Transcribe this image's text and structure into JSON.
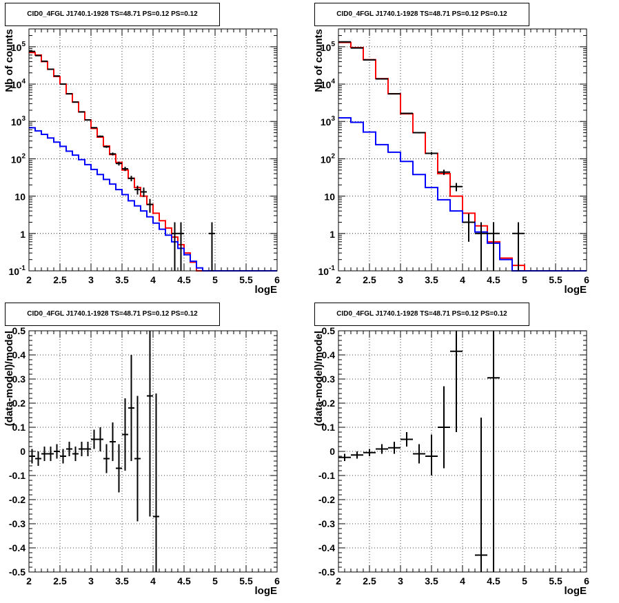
{
  "chart_data": [
    {
      "type": "line",
      "title": "CID0_4FGL J1740.1-1928 TS=48.71 PS=0.12 PS=0.12",
      "xlabel": "logE",
      "ylabel": "Nb of counts",
      "yscale": "log",
      "xlim": [
        2,
        6
      ],
      "ylim": [
        0.1,
        300000
      ],
      "grid": true,
      "xticks": [
        "2",
        "2.5",
        "3",
        "3.5",
        "4",
        "4.5",
        "5",
        "5.5",
        "6"
      ],
      "yticks": [
        {
          "value": 0.1,
          "base": "10",
          "exp": "-1"
        },
        {
          "value": 1,
          "label": "1"
        },
        {
          "value": 10,
          "label": "10"
        },
        {
          "value": 100,
          "base": "10",
          "exp": "2"
        },
        {
          "value": 1000,
          "base": "10",
          "exp": "3"
        },
        {
          "value": 10000,
          "base": "10",
          "exp": "4"
        },
        {
          "value": 100000,
          "base": "10",
          "exp": "5"
        }
      ],
      "bin_edges": [
        2,
        2.1,
        2.2,
        2.3,
        2.4,
        2.5,
        2.6,
        2.7,
        2.8,
        2.9,
        3,
        3.1,
        3.2,
        3.3,
        3.4,
        3.5,
        3.6,
        3.7,
        3.8,
        3.9,
        4,
        4.1,
        4.2,
        4.3,
        4.4,
        4.5,
        4.6,
        4.7,
        4.8,
        4.9,
        5,
        5.1,
        5.2,
        5.3,
        5.4,
        5.5,
        5.6,
        5.7,
        5.8,
        5.9,
        6
      ],
      "series": [
        {
          "color": "#ff0000",
          "values": [
            70000,
            60000,
            40000,
            25000,
            16000,
            10000,
            5500,
            3300,
            1800,
            1100,
            650,
            380,
            220,
            130,
            80,
            50,
            30,
            17,
            10,
            6,
            3.5,
            2.2,
            1.4,
            0.8,
            0.5,
            0.3,
            0.17,
            0.1,
            0.1,
            0.1,
            0.1,
            0.1,
            0.1,
            0.1,
            0.1,
            0.1,
            0.1,
            0.1,
            0.1,
            0.1
          ]
        },
        {
          "color": "#0000ff",
          "values": [
            680,
            560,
            450,
            360,
            280,
            215,
            160,
            125,
            95,
            70,
            52,
            38,
            28,
            21,
            15,
            11,
            7.5,
            5.5,
            4,
            2.8,
            1.9,
            1.3,
            0.9,
            0.6,
            0.4,
            0.27,
            0.18,
            0.12,
            0.1,
            0.1,
            0.1,
            0.1,
            0.1,
            0.1,
            0.1,
            0.1,
            0.1,
            0.1,
            0.1,
            0.1
          ]
        }
      ],
      "data_points": [
        {
          "x": 2.05,
          "y": 75000,
          "ylo": 74700,
          "yhi": 75300
        },
        {
          "x": 2.15,
          "y": 58000,
          "ylo": 57700,
          "yhi": 58300
        },
        {
          "x": 2.25,
          "y": 41000,
          "ylo": 40800,
          "yhi": 41200
        },
        {
          "x": 2.35,
          "y": 25000,
          "ylo": 24840,
          "yhi": 25160
        },
        {
          "x": 2.45,
          "y": 16500,
          "ylo": 16370,
          "yhi": 16630
        },
        {
          "x": 2.55,
          "y": 10000,
          "ylo": 9900,
          "yhi": 10100
        },
        {
          "x": 2.65,
          "y": 5500,
          "ylo": 5430,
          "yhi": 5570
        },
        {
          "x": 2.75,
          "y": 3300,
          "ylo": 3240,
          "yhi": 3360
        },
        {
          "x": 2.85,
          "y": 1800,
          "ylo": 1760,
          "yhi": 1840
        },
        {
          "x": 2.95,
          "y": 1100,
          "ylo": 1070,
          "yhi": 1130
        },
        {
          "x": 3.05,
          "y": 680,
          "ylo": 654,
          "yhi": 706
        },
        {
          "x": 3.15,
          "y": 400,
          "ylo": 380,
          "yhi": 420
        },
        {
          "x": 3.25,
          "y": 210,
          "ylo": 196,
          "yhi": 224
        },
        {
          "x": 3.35,
          "y": 135,
          "ylo": 123,
          "yhi": 147
        },
        {
          "x": 3.45,
          "y": 75,
          "ylo": 66,
          "yhi": 84
        },
        {
          "x": 3.55,
          "y": 54,
          "ylo": 47,
          "yhi": 61
        },
        {
          "x": 3.65,
          "y": 30,
          "ylo": 25,
          "yhi": 35
        },
        {
          "x": 3.75,
          "y": 15,
          "ylo": 11,
          "yhi": 19
        },
        {
          "x": 3.85,
          "y": 13,
          "ylo": 9.5,
          "yhi": 17
        },
        {
          "x": 3.95,
          "y": 6,
          "ylo": 3.6,
          "yhi": 8.4
        },
        {
          "x": 4.35,
          "y": 1,
          "ylo": 0.1,
          "yhi": 2
        },
        {
          "x": 4.45,
          "y": 1,
          "ylo": 0.1,
          "yhi": 2
        },
        {
          "x": 4.95,
          "y": 1,
          "ylo": 0.1,
          "yhi": 2
        }
      ]
    },
    {
      "type": "line",
      "title": "CID0_4FGL J1740.1-1928 TS=48.71 PS=0.12 PS=0.12",
      "xlabel": "logE",
      "ylabel": "Nb of counts",
      "yscale": "log",
      "xlim": [
        2,
        6
      ],
      "ylim": [
        0.1,
        300000
      ],
      "grid": true,
      "xticks": [
        "2",
        "2.5",
        "3",
        "3.5",
        "4",
        "4.5",
        "5",
        "5.5",
        "6"
      ],
      "yticks": [
        {
          "value": 0.1,
          "base": "10",
          "exp": "-1"
        },
        {
          "value": 1,
          "label": "1"
        },
        {
          "value": 10,
          "label": "10"
        },
        {
          "value": 100,
          "base": "10",
          "exp": "2"
        },
        {
          "value": 1000,
          "base": "10",
          "exp": "3"
        },
        {
          "value": 10000,
          "base": "10",
          "exp": "4"
        },
        {
          "value": 100000,
          "base": "10",
          "exp": "5"
        }
      ],
      "bin_edges": [
        2,
        2.2,
        2.4,
        2.6,
        2.8,
        3,
        3.2,
        3.4,
        3.6,
        3.8,
        4,
        4.2,
        4.4,
        4.6,
        4.8,
        5,
        5.2,
        5.4,
        5.6,
        5.8,
        6
      ],
      "series": [
        {
          "color": "#ff0000",
          "values": [
            130000,
            95000,
            45000,
            14000,
            5500,
            1600,
            500,
            140,
            40,
            10,
            3.5,
            1.6,
            0.6,
            0.22,
            0.14,
            0.1,
            0.1,
            0.1,
            0.1,
            0.1
          ]
        },
        {
          "color": "#0000ff",
          "values": [
            1250,
            950,
            520,
            240,
            150,
            85,
            38,
            17,
            8,
            4,
            2,
            1.1,
            0.55,
            0.2,
            0.1,
            0.1,
            0.1,
            0.1,
            0.1,
            0.1
          ]
        }
      ],
      "data_points": [
        {
          "x": 2.1,
          "y": 135000,
          "ylo": 134500,
          "yhi": 135500
        },
        {
          "x": 2.3,
          "y": 93000,
          "ylo": 92700,
          "yhi": 93300
        },
        {
          "x": 2.5,
          "y": 44500,
          "ylo": 44300,
          "yhi": 44700
        },
        {
          "x": 2.7,
          "y": 13800,
          "ylo": 13680,
          "yhi": 13920
        },
        {
          "x": 2.9,
          "y": 5500,
          "ylo": 5430,
          "yhi": 5570
        },
        {
          "x": 3.1,
          "y": 1650,
          "ylo": 1610,
          "yhi": 1690
        },
        {
          "x": 3.3,
          "y": 500,
          "ylo": 478,
          "yhi": 522
        },
        {
          "x": 3.5,
          "y": 140,
          "ylo": 128,
          "yhi": 152
        },
        {
          "x": 3.7,
          "y": 44,
          "ylo": 37,
          "yhi": 51
        },
        {
          "x": 3.9,
          "y": 18,
          "ylo": 13.5,
          "yhi": 22.5
        },
        {
          "x": 4.1,
          "y": 2,
          "ylo": 0.6,
          "yhi": 3.4
        },
        {
          "x": 4.3,
          "y": 1,
          "ylo": 0.1,
          "yhi": 2
        },
        {
          "x": 4.5,
          "y": 1,
          "ylo": 0.1,
          "yhi": 2
        },
        {
          "x": 4.9,
          "y": 1,
          "ylo": 0.1,
          "yhi": 2
        }
      ]
    },
    {
      "type": "scatter",
      "title": "CID0_4FGL J1740.1-1928 TS=48.71 PS=0.12 PS=0.12",
      "xlabel": "logE",
      "ylabel": "(data-model)/model",
      "xlim": [
        2,
        6
      ],
      "ylim": [
        -0.5,
        0.5
      ],
      "grid": true,
      "xticks": [
        "2",
        "2.5",
        "3",
        "3.5",
        "4",
        "4.5",
        "5",
        "5.5",
        "6"
      ],
      "yticks": [
        "-0.5",
        "-0.4",
        "-0.3",
        "-0.2",
        "-0.1",
        "0",
        "0.1",
        "0.2",
        "0.3",
        "0.4",
        "0.5"
      ],
      "bin_half_width": 0.05,
      "points": [
        {
          "x": 2.05,
          "y": -0.02,
          "ylo": -0.05,
          "yhi": 0.01
        },
        {
          "x": 2.15,
          "y": -0.03,
          "ylo": -0.06,
          "yhi": 0.0
        },
        {
          "x": 2.25,
          "y": -0.01,
          "ylo": -0.04,
          "yhi": 0.02
        },
        {
          "x": 2.35,
          "y": -0.01,
          "ylo": -0.04,
          "yhi": 0.02
        },
        {
          "x": 2.45,
          "y": 0.0,
          "ylo": -0.03,
          "yhi": 0.03
        },
        {
          "x": 2.55,
          "y": -0.02,
          "ylo": -0.05,
          "yhi": 0.01
        },
        {
          "x": 2.65,
          "y": 0.01,
          "ylo": -0.02,
          "yhi": 0.04
        },
        {
          "x": 2.75,
          "y": -0.01,
          "ylo": -0.04,
          "yhi": 0.02
        },
        {
          "x": 2.85,
          "y": 0.01,
          "ylo": -0.02,
          "yhi": 0.04
        },
        {
          "x": 2.95,
          "y": 0.01,
          "ylo": -0.02,
          "yhi": 0.04
        },
        {
          "x": 3.05,
          "y": 0.05,
          "ylo": 0.01,
          "yhi": 0.09
        },
        {
          "x": 3.15,
          "y": 0.05,
          "ylo": 0.0,
          "yhi": 0.1
        },
        {
          "x": 3.25,
          "y": -0.03,
          "ylo": -0.09,
          "yhi": 0.03
        },
        {
          "x": 3.35,
          "y": 0.04,
          "ylo": -0.04,
          "yhi": 0.12
        },
        {
          "x": 3.45,
          "y": -0.07,
          "ylo": -0.17,
          "yhi": 0.03
        },
        {
          "x": 3.55,
          "y": 0.07,
          "ylo": -0.08,
          "yhi": 0.22
        },
        {
          "x": 3.65,
          "y": 0.18,
          "ylo": -0.04,
          "yhi": 0.4
        },
        {
          "x": 3.75,
          "y": -0.03,
          "ylo": -0.29,
          "yhi": 0.23
        },
        {
          "x": 3.95,
          "y": 0.23,
          "ylo": -0.27,
          "yhi": 0.5
        },
        {
          "x": 4.05,
          "y": -0.27,
          "ylo": -0.5,
          "yhi": 0.24
        }
      ]
    },
    {
      "type": "scatter",
      "title": "CID0_4FGL J1740.1-1928 TS=48.71 PS=0.12 PS=0.12",
      "xlabel": "logE",
      "ylabel": "(data-model)/model",
      "xlim": [
        2,
        6
      ],
      "ylim": [
        -0.5,
        0.5
      ],
      "grid": true,
      "xticks": [
        "2",
        "2.5",
        "3",
        "3.5",
        "4",
        "4.5",
        "5",
        "5.5",
        "6"
      ],
      "yticks": [
        "-0.5",
        "-0.4",
        "-0.3",
        "-0.2",
        "-0.1",
        "0",
        "0.1",
        "0.2",
        "0.3",
        "0.4",
        "0.5"
      ],
      "bin_half_width": 0.1,
      "points": [
        {
          "x": 2.1,
          "y": -0.025,
          "ylo": -0.04,
          "yhi": -0.01
        },
        {
          "x": 2.3,
          "y": -0.015,
          "ylo": -0.03,
          "yhi": 0.0
        },
        {
          "x": 2.5,
          "y": -0.005,
          "ylo": -0.02,
          "yhi": 0.01
        },
        {
          "x": 2.7,
          "y": 0.01,
          "ylo": -0.01,
          "yhi": 0.03
        },
        {
          "x": 2.9,
          "y": 0.015,
          "ylo": -0.01,
          "yhi": 0.04
        },
        {
          "x": 3.1,
          "y": 0.05,
          "ylo": 0.02,
          "yhi": 0.08
        },
        {
          "x": 3.3,
          "y": -0.01,
          "ylo": -0.05,
          "yhi": 0.03
        },
        {
          "x": 3.5,
          "y": -0.02,
          "ylo": -0.1,
          "yhi": 0.07
        },
        {
          "x": 3.7,
          "y": 0.1,
          "ylo": -0.07,
          "yhi": 0.27
        },
        {
          "x": 3.9,
          "y": 0.415,
          "ylo": 0.08,
          "yhi": 0.5
        },
        {
          "x": 4.3,
          "y": -0.43,
          "ylo": -0.5,
          "yhi": 0.14
        },
        {
          "x": 4.5,
          "y": 0.305,
          "ylo": -0.5,
          "yhi": 0.5
        }
      ]
    }
  ]
}
